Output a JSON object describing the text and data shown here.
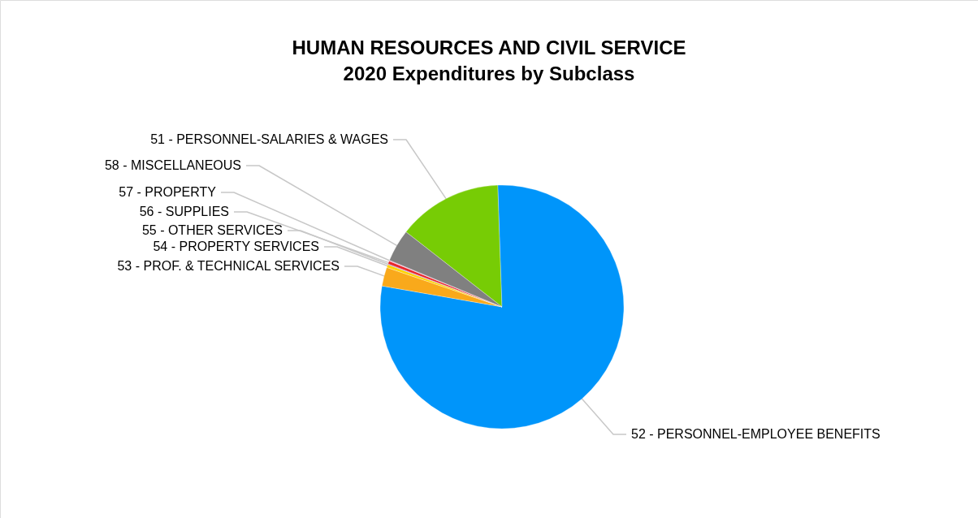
{
  "chart_data": {
    "type": "pie",
    "title": "HUMAN RESOURCES AND CIVIL SERVICE",
    "subtitle": "2020 Expenditures by Subclass",
    "categories": [
      "51 - PERSONNEL-SALARIES & WAGES",
      "52 - PERSONNEL-EMPLOYEE BENEFITS",
      "53 - PROF. & TECHNICAL SERVICES",
      "54 - PROPERTY SERVICES",
      "55 - OTHER SERVICES",
      "56 - SUPPLIES",
      "57 - PROPERTY",
      "58 - MISCELLANEOUS"
    ],
    "values": [
      13.9,
      78.3,
      2.5,
      0.4,
      0.1,
      0.4,
      0.1,
      4.3
    ],
    "colors": [
      "#77cc05",
      "#0095fa",
      "#f9a91b",
      "#ffd400",
      "#7f7fff",
      "#e8262a",
      "#ff99cc",
      "#808080"
    ]
  }
}
